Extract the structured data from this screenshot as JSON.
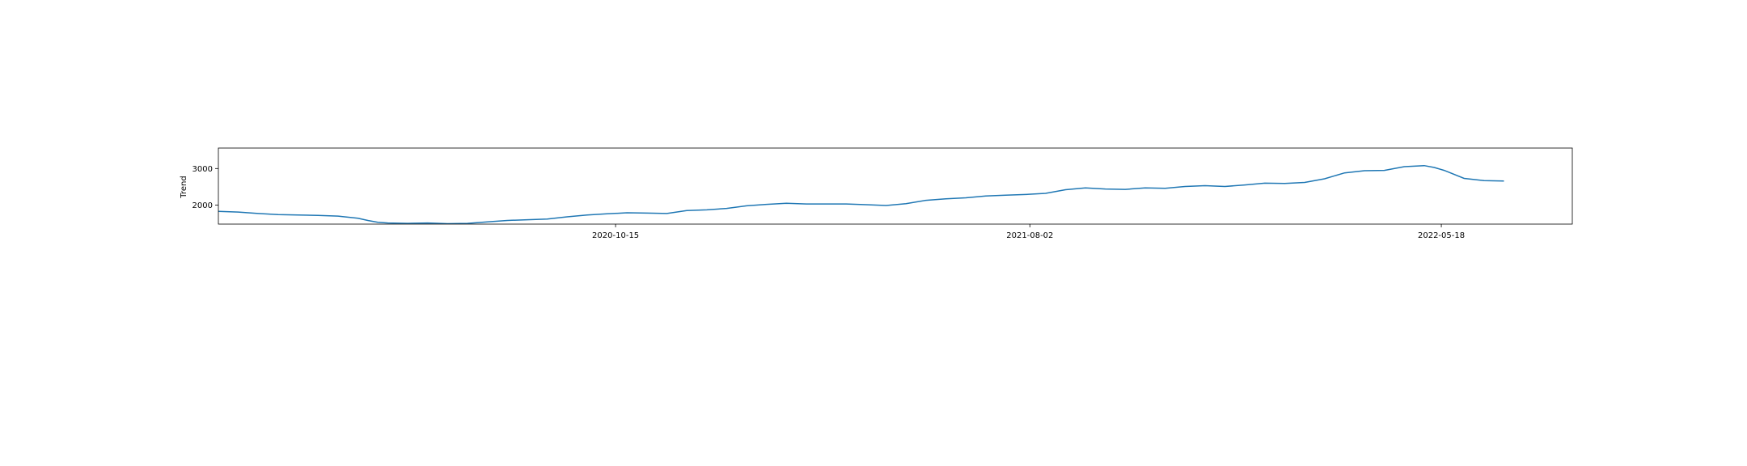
{
  "chart_data": {
    "type": "line",
    "title": "",
    "xlabel": "",
    "ylabel": "Trend",
    "x_tick_labels": [
      "2020-10-15",
      "2021-08-02",
      "2022-05-18"
    ],
    "x_tick_dates": [
      "2020-10-15",
      "2021-08-02",
      "2022-05-18"
    ],
    "y_tick_labels": [
      "2000",
      "3000"
    ],
    "y_tick_values": [
      2000,
      3000
    ],
    "xlim": [
      "2020-01-10",
      "2022-08-18"
    ],
    "ylim": [
      1480,
      3560
    ],
    "grid": false,
    "series": [
      {
        "color": "#1f77b4",
        "points": [
          [
            "2020-01-10",
            1830
          ],
          [
            "2020-01-24",
            1810
          ],
          [
            "2020-02-07",
            1770
          ],
          [
            "2020-02-21",
            1740
          ],
          [
            "2020-03-06",
            1730
          ],
          [
            "2020-03-20",
            1720
          ],
          [
            "2020-04-03",
            1700
          ],
          [
            "2020-04-17",
            1640
          ],
          [
            "2020-04-24",
            1580
          ],
          [
            "2020-05-01",
            1530
          ],
          [
            "2020-05-08",
            1510
          ],
          [
            "2020-05-22",
            1500
          ],
          [
            "2020-06-05",
            1510
          ],
          [
            "2020-06-19",
            1490
          ],
          [
            "2020-07-03",
            1500
          ],
          [
            "2020-07-17",
            1540
          ],
          [
            "2020-07-31",
            1580
          ],
          [
            "2020-08-14",
            1600
          ],
          [
            "2020-08-28",
            1620
          ],
          [
            "2020-09-11",
            1680
          ],
          [
            "2020-09-25",
            1730
          ],
          [
            "2020-10-09",
            1760
          ],
          [
            "2020-10-23",
            1790
          ],
          [
            "2020-11-06",
            1780
          ],
          [
            "2020-11-20",
            1770
          ],
          [
            "2020-12-04",
            1850
          ],
          [
            "2020-12-18",
            1870
          ],
          [
            "2021-01-01",
            1910
          ],
          [
            "2021-01-15",
            1980
          ],
          [
            "2021-01-29",
            2020
          ],
          [
            "2021-02-12",
            2050
          ],
          [
            "2021-02-26",
            2030
          ],
          [
            "2021-03-12",
            2030
          ],
          [
            "2021-03-26",
            2030
          ],
          [
            "2021-04-09",
            2010
          ],
          [
            "2021-04-23",
            1990
          ],
          [
            "2021-05-07",
            2040
          ],
          [
            "2021-05-21",
            2130
          ],
          [
            "2021-06-04",
            2170
          ],
          [
            "2021-06-18",
            2200
          ],
          [
            "2021-07-02",
            2250
          ],
          [
            "2021-07-16",
            2270
          ],
          [
            "2021-07-30",
            2290
          ],
          [
            "2021-08-13",
            2320
          ],
          [
            "2021-08-27",
            2420
          ],
          [
            "2021-09-10",
            2470
          ],
          [
            "2021-09-24",
            2440
          ],
          [
            "2021-10-08",
            2430
          ],
          [
            "2021-10-22",
            2470
          ],
          [
            "2021-11-05",
            2460
          ],
          [
            "2021-11-19",
            2510
          ],
          [
            "2021-12-03",
            2530
          ],
          [
            "2021-12-17",
            2510
          ],
          [
            "2021-12-31",
            2550
          ],
          [
            "2022-01-14",
            2600
          ],
          [
            "2022-01-28",
            2590
          ],
          [
            "2022-02-11",
            2620
          ],
          [
            "2022-02-25",
            2720
          ],
          [
            "2022-03-11",
            2880
          ],
          [
            "2022-03-25",
            2940
          ],
          [
            "2022-04-08",
            2950
          ],
          [
            "2022-04-22",
            3050
          ],
          [
            "2022-05-06",
            3080
          ],
          [
            "2022-05-13",
            3030
          ],
          [
            "2022-05-20",
            2950
          ],
          [
            "2022-06-03",
            2730
          ],
          [
            "2022-06-17",
            2670
          ],
          [
            "2022-07-01",
            2660
          ]
        ]
      }
    ]
  }
}
